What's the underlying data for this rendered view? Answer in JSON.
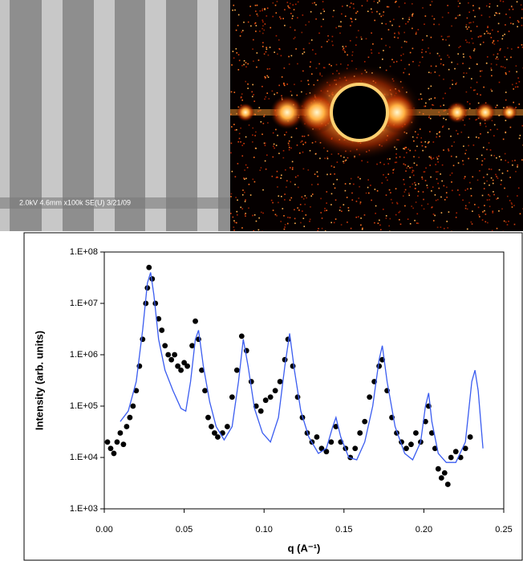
{
  "chart_data": {
    "type": "scatter",
    "annotations": [
      "2.0kV 4.6mm x100k SE(U) 3/21/09"
    ],
    "x_label": "q (A⁻¹)",
    "y_label": "Intensity (arb. units)",
    "log_y": true,
    "xlim": [
      0,
      0.25
    ],
    "xticks": [
      {
        "value": 0,
        "label": "0.00"
      },
      0.05,
      {
        "value": 0.1,
        "label": "0.10"
      },
      0.15,
      {
        "value": 0.2,
        "label": "0.20"
      },
      0.25
    ],
    "ylim": [
      1000,
      100000000
    ],
    "yticks": [
      {
        "value": 1000,
        "label": "1.E+03"
      },
      {
        "value": 10000,
        "label": "1.E+04"
      },
      {
        "value": 100000,
        "label": "1.E+05"
      },
      {
        "value": 1000000,
        "label": "1.E+06"
      },
      {
        "value": 10000000,
        "label": "1.E+07"
      },
      {
        "value": 100000000,
        "label": "1.E+08"
      }
    ],
    "series": [
      {
        "type": "scatter",
        "color": "#000000",
        "x": [
          0.002,
          0.004,
          0.006,
          0.008,
          0.01,
          0.012,
          0.014,
          0.016,
          0.018,
          0.02,
          0.022,
          0.024,
          0.026,
          0.027,
          0.028,
          0.03,
          0.032,
          0.034,
          0.036,
          0.038,
          0.04,
          0.042,
          0.044,
          0.046,
          0.048,
          0.05,
          0.052,
          0.055,
          0.057,
          0.059,
          0.061,
          0.063,
          0.065,
          0.067,
          0.069,
          0.071,
          0.074,
          0.077,
          0.08,
          0.083,
          0.086,
          0.089,
          0.092,
          0.095,
          0.098,
          0.101,
          0.104,
          0.107,
          0.11,
          0.113,
          0.115,
          0.118,
          0.121,
          0.124,
          0.127,
          0.13,
          0.133,
          0.136,
          0.139,
          0.142,
          0.145,
          0.148,
          0.151,
          0.154,
          0.157,
          0.16,
          0.163,
          0.166,
          0.169,
          0.172,
          0.174,
          0.177,
          0.18,
          0.183,
          0.186,
          0.189,
          0.192,
          0.195,
          0.198,
          0.201,
          0.203,
          0.205,
          0.207,
          0.209,
          0.211,
          0.213,
          0.215,
          0.217,
          0.22,
          0.223,
          0.226,
          0.229
        ],
        "values": [
          20000,
          15000,
          12000,
          20000,
          30000,
          18000,
          40000,
          60000,
          100000,
          200000,
          600000,
          2000000,
          10000000,
          20000000,
          50000000,
          30000000,
          10000000,
          5000000,
          3000000,
          1500000,
          1000000,
          800000,
          1000000,
          600000,
          500000,
          700000,
          600000,
          1500000,
          4500000,
          2000000,
          500000,
          200000,
          60000,
          40000,
          30000,
          25000,
          30000,
          40000,
          150000,
          500000,
          2300000,
          1200000,
          300000,
          100000,
          80000,
          130000,
          150000,
          200000,
          300000,
          800000,
          2000000,
          600000,
          150000,
          60000,
          30000,
          20000,
          25000,
          15000,
          13000,
          20000,
          40000,
          20000,
          15000,
          10000,
          15000,
          30000,
          50000,
          150000,
          300000,
          600000,
          800000,
          200000,
          60000,
          30000,
          20000,
          15000,
          18000,
          30000,
          20000,
          50000,
          100000,
          30000,
          15000,
          6000,
          4000,
          5000,
          3000,
          10000,
          13000,
          10000,
          15000,
          25000
        ]
      },
      {
        "type": "line",
        "color": "#3a5cf0",
        "x": [
          0.01,
          0.015,
          0.02,
          0.024,
          0.027,
          0.029,
          0.031,
          0.034,
          0.038,
          0.043,
          0.048,
          0.051,
          0.054,
          0.057,
          0.059,
          0.062,
          0.066,
          0.07,
          0.075,
          0.08,
          0.084,
          0.087,
          0.09,
          0.094,
          0.099,
          0.104,
          0.109,
          0.113,
          0.116,
          0.119,
          0.123,
          0.128,
          0.134,
          0.139,
          0.143,
          0.145,
          0.148,
          0.153,
          0.158,
          0.163,
          0.168,
          0.172,
          0.174,
          0.177,
          0.182,
          0.188,
          0.193,
          0.198,
          0.201,
          0.203,
          0.205,
          0.209,
          0.214,
          0.22,
          0.226,
          0.23,
          0.232,
          0.234,
          0.237
        ],
        "values": [
          50000,
          80000,
          300000,
          3000000,
          25000000,
          40000000,
          15000000,
          2000000,
          500000,
          200000,
          90000,
          80000,
          300000,
          2000000,
          3000000,
          600000,
          120000,
          40000,
          22000,
          40000,
          300000,
          2000000,
          600000,
          90000,
          30000,
          20000,
          60000,
          600000,
          2600000,
          500000,
          80000,
          25000,
          12000,
          15000,
          40000,
          60000,
          25000,
          10000,
          9000,
          20000,
          100000,
          800000,
          1500000,
          300000,
          40000,
          12000,
          9000,
          20000,
          100000,
          180000,
          50000,
          12000,
          8000,
          8000,
          20000,
          300000,
          500000,
          200000,
          15000
        ]
      }
    ]
  }
}
